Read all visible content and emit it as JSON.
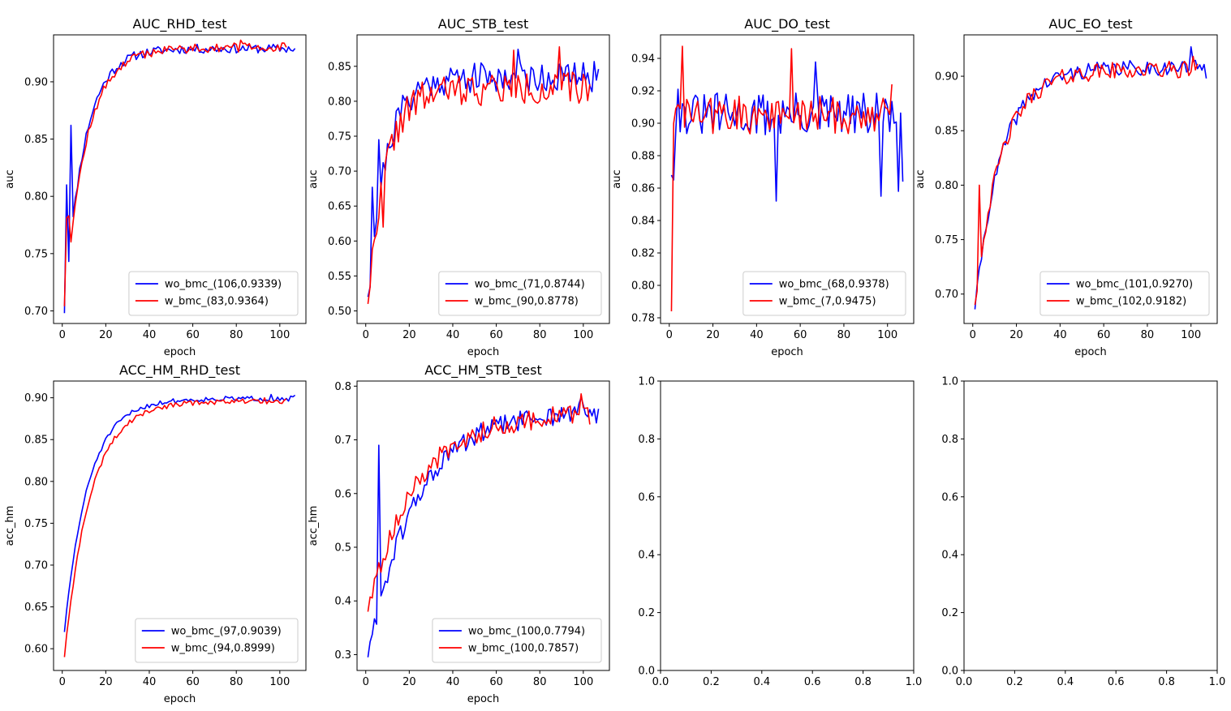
{
  "figure": {
    "rows": 2,
    "cols": 4
  },
  "chart_data": [
    {
      "type": "line",
      "title": "AUC_RHD_test",
      "xlabel": "epoch",
      "ylabel": "auc",
      "xlim": [
        -4,
        112
      ],
      "ylim": [
        0.689,
        0.941
      ],
      "xticks": [
        0,
        20,
        40,
        60,
        80,
        100
      ],
      "xtick_labels": [
        "0",
        "20",
        "40",
        "60",
        "80",
        "100"
      ],
      "yticks": [
        0.7,
        0.75,
        0.8,
        0.85,
        0.9
      ],
      "ytick_labels": [
        "0.70",
        "0.75",
        "0.80",
        "0.85",
        "0.90"
      ],
      "legend": "lower-right",
      "series": [
        {
          "name": "wo_bmc_(106,0.9339)",
          "color": "#0000ff",
          "n": 107,
          "seed": 11,
          "shape": "rise",
          "start": 0.698,
          "end": 0.929,
          "k": 9,
          "noise": 0.004,
          "spikes": [
            [
              2,
              0.81
            ],
            [
              4,
              0.862
            ]
          ]
        },
        {
          "name": "w_bmc_(83,0.9364)",
          "color": "#ff0000",
          "n": 103,
          "seed": 12,
          "shape": "rise",
          "start": 0.704,
          "end": 0.93,
          "k": 10,
          "noise": 0.004,
          "spikes": [
            [
              2,
              0.781
            ],
            [
              3,
              0.783
            ],
            [
              82,
              0.9364
            ]
          ]
        }
      ]
    },
    {
      "type": "line",
      "title": "AUC_STB_test",
      "xlabel": "epoch",
      "ylabel": "auc",
      "xlim": [
        -4,
        112
      ],
      "ylim": [
        0.482,
        0.895
      ],
      "xticks": [
        0,
        20,
        40,
        60,
        80,
        100
      ],
      "xtick_labels": [
        "0",
        "20",
        "40",
        "60",
        "80",
        "100"
      ],
      "yticks": [
        0.5,
        0.55,
        0.6,
        0.65,
        0.7,
        0.75,
        0.8,
        0.85
      ],
      "ytick_labels": [
        "0.50",
        "0.55",
        "0.60",
        "0.65",
        "0.70",
        "0.75",
        "0.80",
        "0.85"
      ],
      "legend": "lower-right",
      "series": [
        {
          "name": "wo_bmc_(71,0.8744)",
          "color": "#0000ff",
          "n": 107,
          "seed": 21,
          "shape": "rise",
          "start": 0.505,
          "end": 0.835,
          "k": 8,
          "noise": 0.022,
          "spikes": [
            [
              1,
              0.52
            ],
            [
              3,
              0.677
            ],
            [
              6,
              0.745
            ],
            [
              70,
              0.8744
            ]
          ]
        },
        {
          "name": "w_bmc_(90,0.8778)",
          "color": "#ff0000",
          "n": 103,
          "seed": 22,
          "shape": "rise",
          "start": 0.505,
          "end": 0.818,
          "k": 8,
          "noise": 0.024,
          "spikes": [
            [
              1,
              0.51
            ],
            [
              8,
              0.62
            ],
            [
              89,
              0.8778
            ],
            [
              68,
              0.873
            ]
          ]
        }
      ]
    },
    {
      "type": "line",
      "title": "AUC_DO_test",
      "xlabel": "epoch",
      "ylabel": "auc",
      "xlim": [
        -4,
        112
      ],
      "ylim": [
        0.7765,
        0.9545
      ],
      "xticks": [
        0,
        20,
        40,
        60,
        80,
        100
      ],
      "xtick_labels": [
        "0",
        "20",
        "40",
        "60",
        "80",
        "100"
      ],
      "yticks": [
        0.78,
        0.8,
        0.82,
        0.84,
        0.86,
        0.88,
        0.9,
        0.92,
        0.94
      ],
      "ytick_labels": [
        "0.78",
        "0.80",
        "0.82",
        "0.84",
        "0.86",
        "0.88",
        "0.90",
        "0.92",
        "0.94"
      ],
      "legend": "lower-right",
      "series": [
        {
          "name": "wo_bmc_(68,0.9378)",
          "color": "#0000ff",
          "n": 107,
          "seed": 31,
          "shape": "flat",
          "start": 0.868,
          "level": 0.905,
          "noise": 0.014,
          "spikes": [
            [
              2,
              0.865
            ],
            [
              4,
              0.921
            ],
            [
              49,
              0.852
            ],
            [
              67,
              0.9378
            ],
            [
              97,
              0.855
            ],
            [
              105,
              0.858
            ],
            [
              107,
              0.864
            ]
          ]
        },
        {
          "name": "w_bmc_(7,0.9475)",
          "color": "#ff0000",
          "n": 102,
          "seed": 32,
          "shape": "flat",
          "start": 0.784,
          "level": 0.905,
          "noise": 0.012,
          "spikes": [
            [
              1,
              0.784
            ],
            [
              6,
              0.9475
            ],
            [
              56,
              0.946
            ],
            [
              102,
              0.924
            ]
          ]
        }
      ]
    },
    {
      "type": "line",
      "title": "AUC_EO_test",
      "xlabel": "epoch",
      "ylabel": "auc",
      "xlim": [
        -4,
        112
      ],
      "ylim": [
        0.673,
        0.938
      ],
      "xticks": [
        0,
        20,
        40,
        60,
        80,
        100
      ],
      "xtick_labels": [
        "0",
        "20",
        "40",
        "60",
        "80",
        "100"
      ],
      "yticks": [
        0.7,
        0.75,
        0.8,
        0.85,
        0.9
      ],
      "ytick_labels": [
        "0.70",
        "0.75",
        "0.80",
        "0.85",
        "0.90"
      ],
      "legend": "lower-right",
      "series": [
        {
          "name": "wo_bmc_(101,0.9270)",
          "color": "#0000ff",
          "n": 107,
          "seed": 41,
          "shape": "rise",
          "start": 0.686,
          "end": 0.908,
          "k": 12,
          "noise": 0.007,
          "spikes": [
            [
              100,
              0.927
            ],
            [
              107,
              0.898
            ]
          ]
        },
        {
          "name": "w_bmc_(102,0.9182)",
          "color": "#ff0000",
          "n": 103,
          "seed": 42,
          "shape": "rise",
          "start": 0.69,
          "end": 0.906,
          "k": 12,
          "noise": 0.008,
          "spikes": [
            [
              3,
              0.8
            ],
            [
              101,
              0.9182
            ]
          ]
        }
      ]
    },
    {
      "type": "line",
      "title": "ACC_HM_RHD_test",
      "xlabel": "epoch",
      "ylabel": "acc_hm",
      "xlim": [
        -4,
        112
      ],
      "ylim": [
        0.574,
        0.92
      ],
      "xticks": [
        0,
        20,
        40,
        60,
        80,
        100
      ],
      "xtick_labels": [
        "0",
        "20",
        "40",
        "60",
        "80",
        "100"
      ],
      "yticks": [
        0.6,
        0.65,
        0.7,
        0.75,
        0.8,
        0.85,
        0.9
      ],
      "ytick_labels": [
        "0.60",
        "0.65",
        "0.70",
        "0.75",
        "0.80",
        "0.85",
        "0.90"
      ],
      "legend": "lower-right",
      "series": [
        {
          "name": "wo_bmc_(97,0.9039)",
          "color": "#0000ff",
          "n": 107,
          "seed": 51,
          "shape": "rise",
          "start": 0.62,
          "end": 0.899,
          "k": 11,
          "noise": 0.003,
          "spikes": [
            [
              96,
              0.9039
            ],
            [
              107,
              0.903
            ]
          ]
        },
        {
          "name": "w_bmc_(94,0.8999)",
          "color": "#ff0000",
          "n": 103,
          "seed": 52,
          "shape": "rise",
          "start": 0.59,
          "end": 0.896,
          "k": 12,
          "noise": 0.003,
          "spikes": [
            [
              93,
              0.8999
            ]
          ]
        }
      ]
    },
    {
      "type": "line",
      "title": "ACC_HM_STB_test",
      "xlabel": "epoch",
      "ylabel": "acc_hm",
      "xlim": [
        -4,
        112
      ],
      "ylim": [
        0.2705,
        0.8095
      ],
      "xticks": [
        0,
        20,
        40,
        60,
        80,
        100
      ],
      "xtick_labels": [
        "0",
        "20",
        "40",
        "60",
        "80",
        "100"
      ],
      "yticks": [
        0.3,
        0.4,
        0.5,
        0.6,
        0.7,
        0.8
      ],
      "ytick_labels": [
        "0.3",
        "0.4",
        "0.5",
        "0.6",
        "0.7",
        "0.8"
      ],
      "legend": "lower-right",
      "series": [
        {
          "name": "wo_bmc_(100,0.7794)",
          "color": "#0000ff",
          "n": 107,
          "seed": 61,
          "shape": "rise",
          "start": 0.295,
          "end": 0.755,
          "k": 22,
          "noise": 0.02,
          "spikes": [
            [
              1,
              0.295
            ],
            [
              6,
              0.69
            ],
            [
              99,
              0.7794
            ]
          ]
        },
        {
          "name": "w_bmc_(100,0.7857)",
          "color": "#ff0000",
          "n": 103,
          "seed": 62,
          "shape": "rise",
          "start": 0.38,
          "end": 0.75,
          "k": 22,
          "noise": 0.02,
          "spikes": [
            [
              1,
              0.38
            ],
            [
              99,
              0.7857
            ]
          ]
        }
      ]
    },
    {
      "type": "empty",
      "title": "",
      "xlabel": "",
      "ylabel": "",
      "xlim": [
        0,
        1
      ],
      "ylim": [
        0,
        1
      ],
      "xticks": [
        0,
        0.2,
        0.4,
        0.6,
        0.8,
        1.0
      ],
      "xtick_labels": [
        "0.0",
        "0.2",
        "0.4",
        "0.6",
        "0.8",
        "1.0"
      ],
      "yticks": [
        0,
        0.2,
        0.4,
        0.6,
        0.8,
        1.0
      ],
      "ytick_labels": [
        "0.0",
        "0.2",
        "0.4",
        "0.6",
        "0.8",
        "1.0"
      ],
      "series": []
    },
    {
      "type": "empty",
      "title": "",
      "xlabel": "",
      "ylabel": "",
      "xlim": [
        0,
        1
      ],
      "ylim": [
        0,
        1
      ],
      "xticks": [
        0,
        0.2,
        0.4,
        0.6,
        0.8,
        1.0
      ],
      "xtick_labels": [
        "0.0",
        "0.2",
        "0.4",
        "0.6",
        "0.8",
        "1.0"
      ],
      "yticks": [
        0,
        0.2,
        0.4,
        0.6,
        0.8,
        1.0
      ],
      "ytick_labels": [
        "0.0",
        "0.2",
        "0.4",
        "0.6",
        "0.8",
        "1.0"
      ],
      "series": []
    }
  ]
}
